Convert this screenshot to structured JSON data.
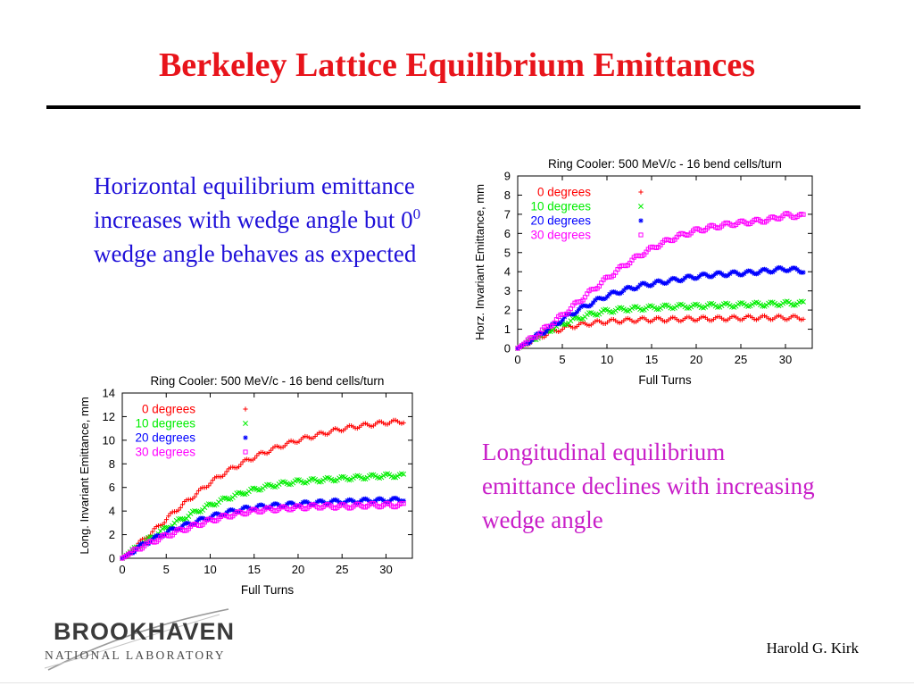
{
  "slide": {
    "title": "Berkeley Lattice Equilibrium Emittances",
    "horizontal_text_a": "Horizontal equilibrium emittance increases with wedge angle but 0",
    "horizontal_text_sup": "0",
    "horizontal_text_b": " wedge angle behaves as expected",
    "longitudinal_text": "Longitudinal equilibrium emittance declines with increasing wedge angle",
    "author": "Harold G. Kirk",
    "logo_word": "BROOKHAVEN",
    "logo_sub": "NATIONAL LABORATORY"
  },
  "chart_data": [
    {
      "type": "scatter",
      "id": "horizontal",
      "title": "Ring Cooler: 500 MeV/c - 16 bend cells/turn",
      "xlabel": "Full Turns",
      "ylabel": "Horz. Invariant Emittance, mm",
      "xlim": [
        0,
        33
      ],
      "ylim": [
        0,
        9
      ],
      "xticks": [
        0,
        5,
        10,
        15,
        20,
        25,
        30
      ],
      "yticks": [
        0,
        1,
        2,
        3,
        4,
        5,
        6,
        7,
        8,
        9
      ],
      "grid": false,
      "legend_position": "top-left",
      "x": [
        0,
        2,
        4,
        6,
        8,
        10,
        12,
        14,
        16,
        18,
        20,
        22,
        24,
        26,
        28,
        30,
        32
      ],
      "series": [
        {
          "name": "0 degrees",
          "marker": "+",
          "color": "#ff0000",
          "values": [
            0,
            0.5,
            0.9,
            1.15,
            1.3,
            1.4,
            1.45,
            1.5,
            1.5,
            1.52,
            1.55,
            1.55,
            1.57,
            1.6,
            1.6,
            1.6,
            1.6
          ]
        },
        {
          "name": "10 degrees",
          "marker": "x",
          "color": "#00ee00",
          "values": [
            0,
            0.55,
            1.05,
            1.45,
            1.75,
            1.95,
            2.05,
            2.1,
            2.15,
            2.2,
            2.2,
            2.25,
            2.25,
            2.3,
            2.3,
            2.35,
            2.35
          ]
        },
        {
          "name": "20 degrees",
          "marker": "*",
          "color": "#0000ff",
          "values": [
            0,
            0.6,
            1.2,
            1.8,
            2.3,
            2.75,
            3.05,
            3.3,
            3.45,
            3.6,
            3.75,
            3.85,
            3.9,
            3.95,
            4.05,
            4.15,
            4.05
          ]
        },
        {
          "name": "30 degrees",
          "marker": "square",
          "color": "#ff00ff",
          "values": [
            0,
            0.65,
            1.35,
            2.1,
            2.9,
            3.65,
            4.35,
            4.95,
            5.45,
            5.85,
            6.15,
            6.35,
            6.5,
            6.6,
            6.7,
            6.95,
            6.9
          ]
        }
      ]
    },
    {
      "type": "scatter",
      "id": "longitudinal",
      "title": "Ring Cooler: 500 MeV/c - 16 bend cells/turn",
      "xlabel": "Full Turns",
      "ylabel": "Long. Invariant Emittance, mm",
      "xlim": [
        0,
        33
      ],
      "ylim": [
        0,
        14
      ],
      "xticks": [
        0,
        5,
        10,
        15,
        20,
        25,
        30
      ],
      "yticks": [
        0,
        2,
        4,
        6,
        8,
        10,
        12,
        14
      ],
      "grid": false,
      "legend_position": "top-left",
      "x": [
        0,
        2,
        4,
        6,
        8,
        10,
        12,
        14,
        16,
        18,
        20,
        22,
        24,
        26,
        28,
        30,
        32
      ],
      "series": [
        {
          "name": "0 degrees",
          "marker": "+",
          "color": "#ff0000",
          "values": [
            0,
            1.3,
            2.6,
            4.0,
            5.2,
            6.4,
            7.4,
            8.2,
            8.9,
            9.5,
            10.0,
            10.4,
            10.8,
            11.1,
            11.3,
            11.5,
            11.6
          ]
        },
        {
          "name": "10 degrees",
          "marker": "x",
          "color": "#00ee00",
          "values": [
            0,
            1.1,
            2.1,
            3.0,
            3.8,
            4.5,
            5.1,
            5.6,
            6.0,
            6.3,
            6.5,
            6.6,
            6.7,
            6.8,
            6.9,
            7.0,
            7.0
          ]
        },
        {
          "name": "20 degrees",
          "marker": "*",
          "color": "#0000ff",
          "values": [
            0,
            1.0,
            1.8,
            2.5,
            3.0,
            3.5,
            3.9,
            4.2,
            4.4,
            4.5,
            4.6,
            4.7,
            4.8,
            4.8,
            4.9,
            4.9,
            5.0
          ]
        },
        {
          "name": "30 degrees",
          "marker": "square",
          "color": "#ff00ff",
          "values": [
            0,
            0.9,
            1.6,
            2.2,
            2.7,
            3.2,
            3.6,
            3.9,
            4.1,
            4.2,
            4.3,
            4.4,
            4.4,
            4.4,
            4.5,
            4.5,
            4.5
          ]
        }
      ]
    }
  ]
}
